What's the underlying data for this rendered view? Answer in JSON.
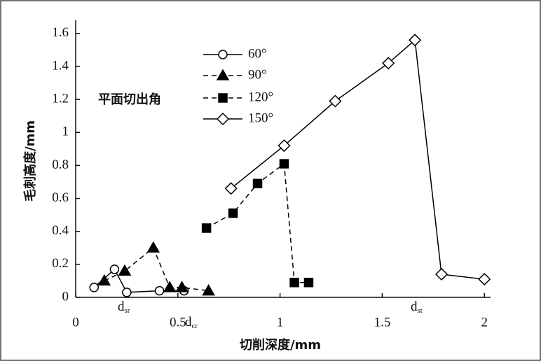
{
  "chart_data": {
    "type": "line",
    "xlabel": "切削深度/mm",
    "ylabel": "毛刺高度/mm",
    "legend_title": "平面切出角",
    "xlim": [
      0,
      2.03
    ],
    "ylim": [
      0,
      1.68
    ],
    "xticks": [
      0,
      0.5,
      1,
      1.5,
      2
    ],
    "yticks": [
      0,
      0.2,
      0.4,
      0.6,
      0.8,
      1,
      1.2,
      1.4,
      1.6
    ],
    "series": [
      {
        "name": "60°",
        "color": "#000000",
        "marker": "circle",
        "dash": false,
        "x": [
          0.09,
          0.19,
          0.25,
          0.41,
          0.53
        ],
        "values": [
          0.06,
          0.17,
          0.03,
          0.04,
          0.04
        ]
      },
      {
        "name": "90°",
        "color": "#000000",
        "marker": "triangle",
        "dash": true,
        "x": [
          0.14,
          0.24,
          0.38,
          0.46,
          0.52,
          0.65
        ],
        "values": [
          0.1,
          0.16,
          0.3,
          0.06,
          0.06,
          0.04
        ]
      },
      {
        "name": "120°",
        "color": "#000000",
        "marker": "square",
        "dash": true,
        "x": [
          0.64,
          0.77,
          0.89,
          1.02,
          1.07,
          1.14
        ],
        "values": [
          0.42,
          0.51,
          0.69,
          0.81,
          0.09,
          0.09
        ]
      },
      {
        "name": "150°",
        "color": "#000000",
        "marker": "diamond",
        "dash": false,
        "x": [
          0.76,
          1.02,
          1.27,
          1.53,
          1.66,
          1.79,
          2.0
        ],
        "values": [
          0.66,
          0.92,
          1.19,
          1.42,
          1.56,
          0.14,
          0.11
        ]
      }
    ],
    "annotations": [
      {
        "text": "d",
        "subscript": "sr"
      },
      {
        "text": "d",
        "subscript": "cr"
      },
      {
        "text": "d",
        "subscript": "st"
      }
    ]
  }
}
